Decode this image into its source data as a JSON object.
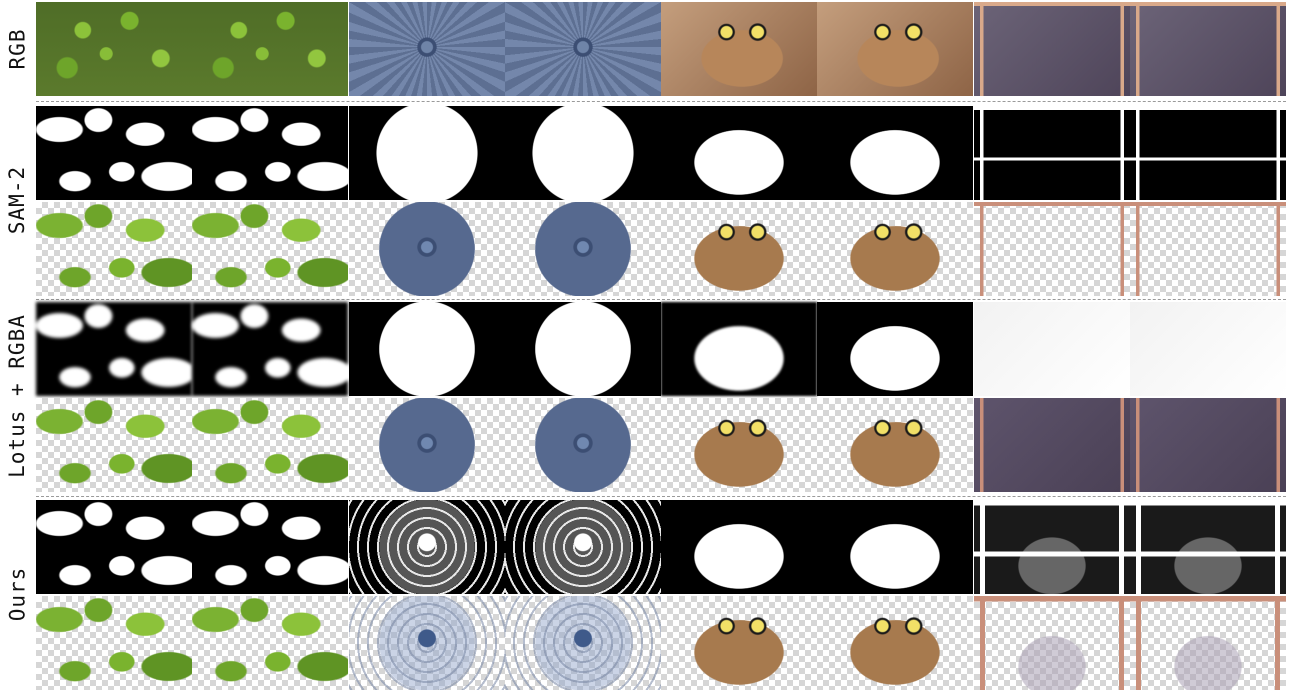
{
  "row_labels": [
    "RGB",
    "SAM-2",
    "Lotus + RGBA",
    "Ours"
  ],
  "columns": [
    "leaves",
    "leaves",
    "fan",
    "fan",
    "cat",
    "cat",
    "glasses",
    "glasses"
  ]
}
